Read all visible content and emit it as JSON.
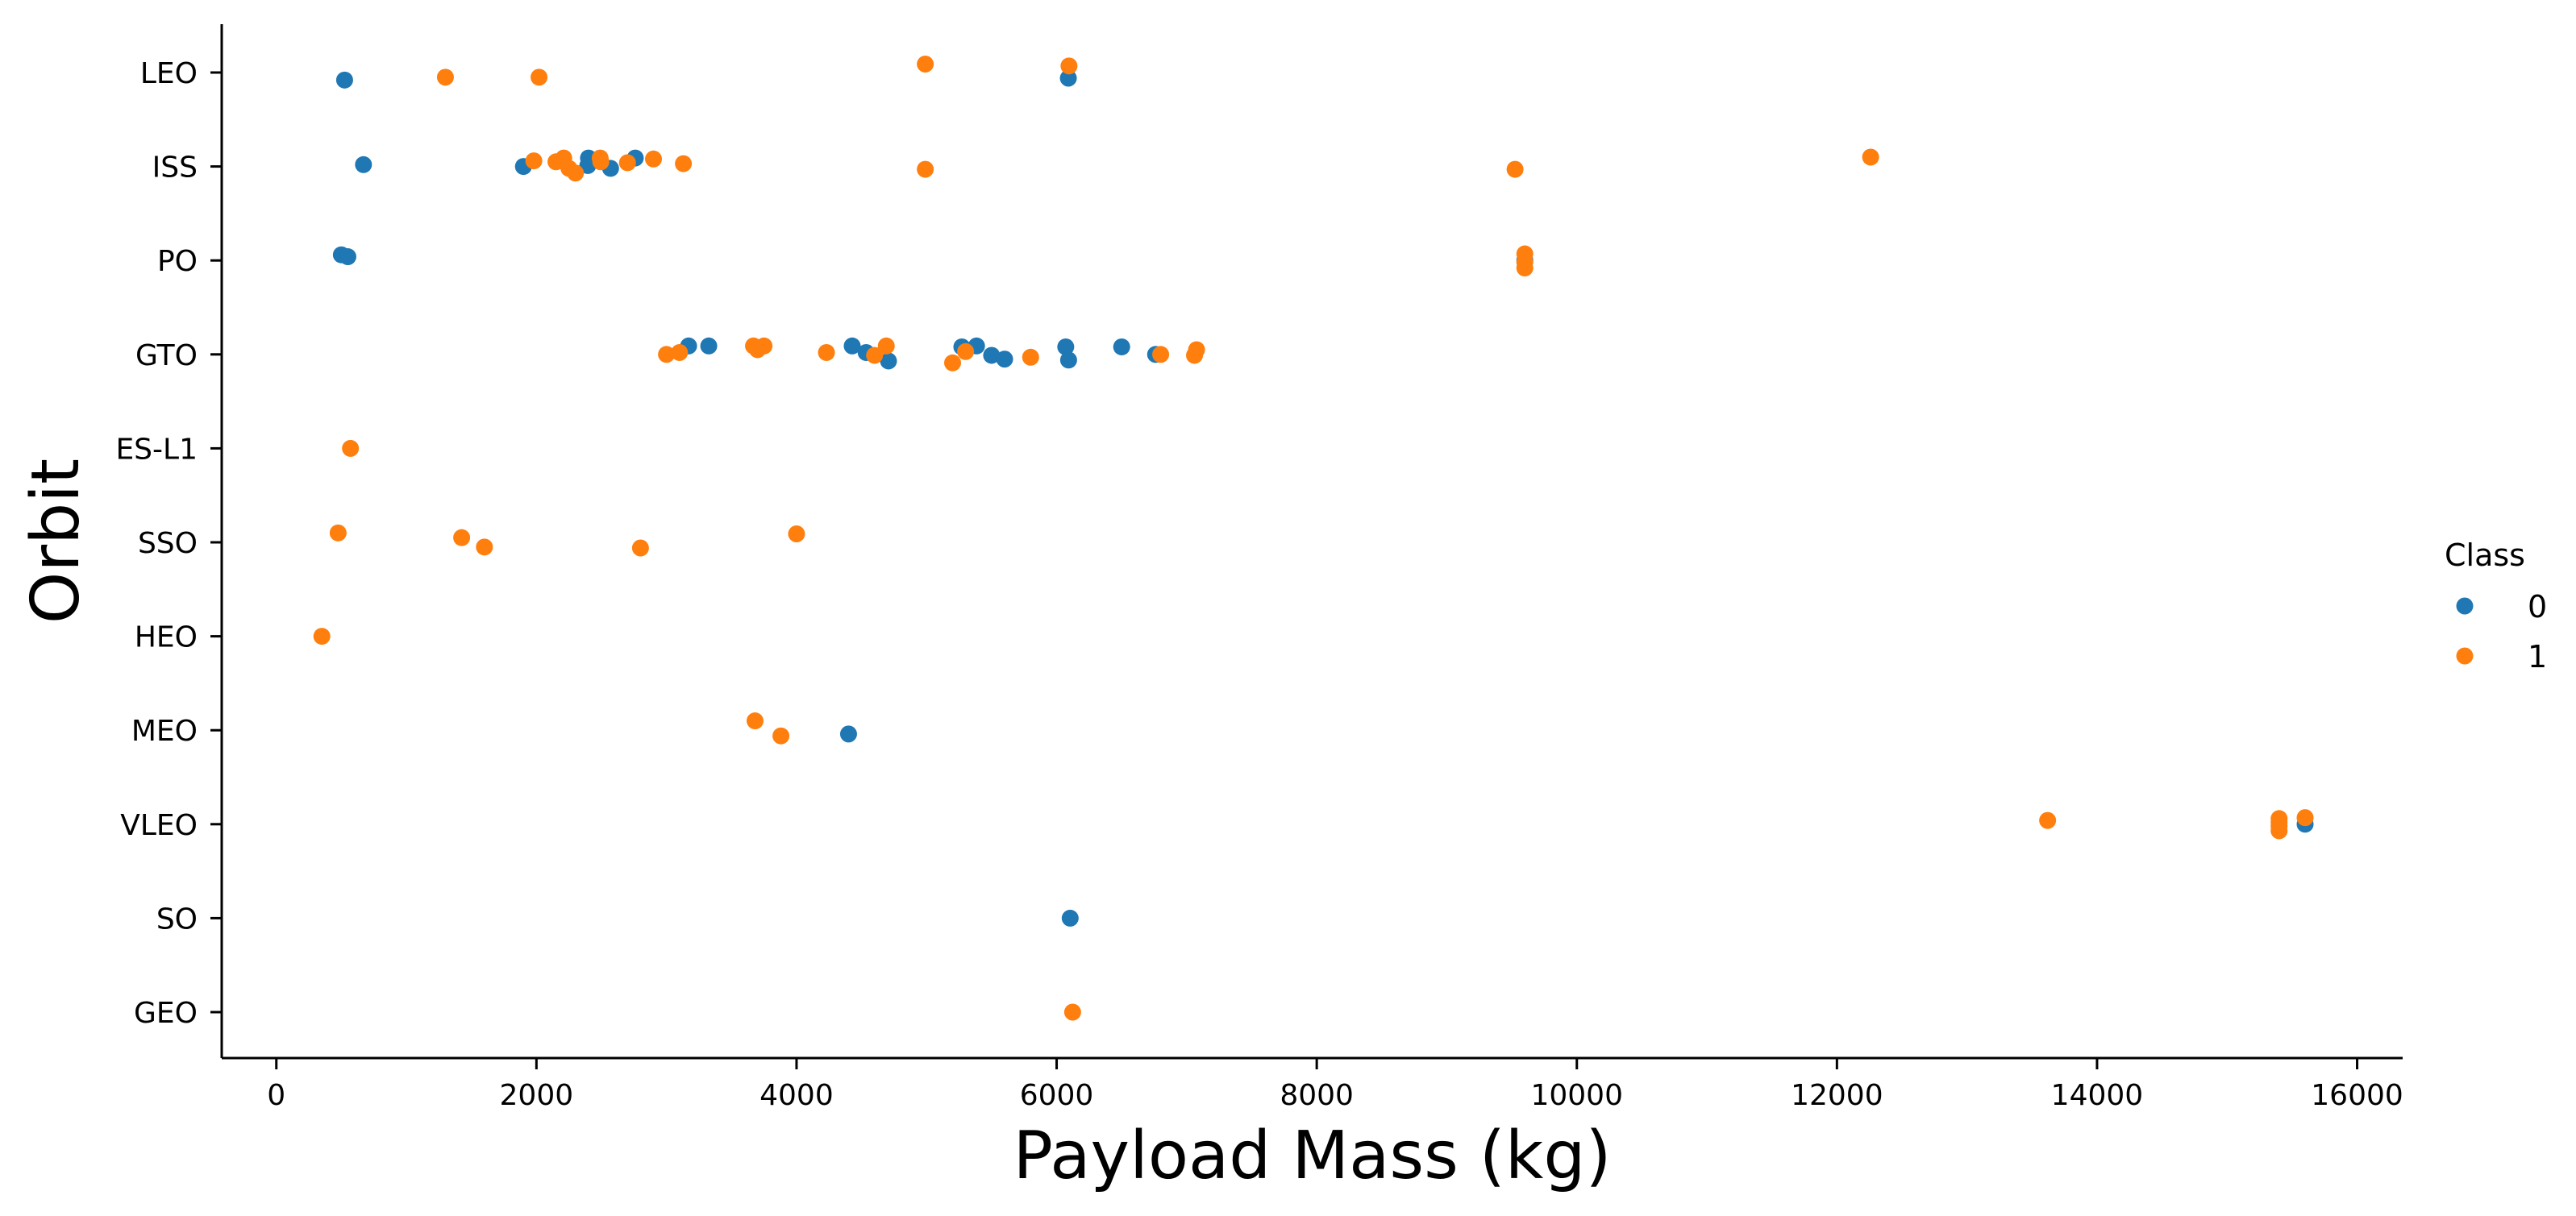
{
  "chart_data": {
    "type": "scatter",
    "xlabel": "Payload Mass (kg)",
    "ylabel": "Orbit",
    "xlim": [
      -420,
      16350
    ],
    "x_ticks": [
      0,
      2000,
      4000,
      6000,
      8000,
      10000,
      12000,
      14000,
      16000
    ],
    "x_tick_labels": [
      "0",
      "2000",
      "4000",
      "6000",
      "8000",
      "10000",
      "12000",
      "14000",
      "16000"
    ],
    "categories": [
      "LEO",
      "ISS",
      "PO",
      "GTO",
      "ES-L1",
      "SSO",
      "HEO",
      "MEO",
      "VLEO",
      "SO",
      "GEO"
    ],
    "grid": false,
    "legend_position": "right",
    "legend": {
      "title": "Class",
      "entries": [
        {
          "label": "0",
          "color": "#1f77b4"
        },
        {
          "label": "1",
          "color": "#ff7f0e"
        }
      ]
    },
    "series": [
      {
        "name": "0",
        "color": "#1f77b4",
        "points": [
          {
            "x": 525,
            "y": "LEO",
            "j": 0.08
          },
          {
            "x": 6090,
            "y": "LEO",
            "j": 0.06
          },
          {
            "x": 670,
            "y": "ISS",
            "j": -0.02
          },
          {
            "x": 1900,
            "y": "ISS",
            "j": 0.0
          },
          {
            "x": 2200,
            "y": "ISS",
            "j": -0.06
          },
          {
            "x": 2400,
            "y": "ISS",
            "j": -0.09
          },
          {
            "x": 2395,
            "y": "ISS",
            "j": -0.01
          },
          {
            "x": 2570,
            "y": "ISS",
            "j": 0.02
          },
          {
            "x": 2760,
            "y": "ISS",
            "j": -0.09
          },
          {
            "x": 500,
            "y": "PO",
            "j": -0.06
          },
          {
            "x": 550,
            "y": "PO",
            "j": -0.04
          },
          {
            "x": 9600,
            "y": "PO",
            "j": 0.0
          },
          {
            "x": 3170,
            "y": "GTO",
            "j": -0.09
          },
          {
            "x": 3325,
            "y": "GTO",
            "j": -0.09
          },
          {
            "x": 4428,
            "y": "GTO",
            "j": -0.09
          },
          {
            "x": 4535,
            "y": "GTO",
            "j": -0.02
          },
          {
            "x": 4707,
            "y": "GTO",
            "j": 0.07
          },
          {
            "x": 5271,
            "y": "GTO",
            "j": -0.08
          },
          {
            "x": 5384,
            "y": "GTO",
            "j": -0.09
          },
          {
            "x": 5500,
            "y": "GTO",
            "j": 0.01
          },
          {
            "x": 5600,
            "y": "GTO",
            "j": 0.05
          },
          {
            "x": 6070,
            "y": "GTO",
            "j": -0.08
          },
          {
            "x": 6092,
            "y": "GTO",
            "j": 0.06
          },
          {
            "x": 6500,
            "y": "GTO",
            "j": -0.08
          },
          {
            "x": 6761,
            "y": "GTO",
            "j": 0.0
          },
          {
            "x": 4400,
            "y": "MEO",
            "j": 0.04
          },
          {
            "x": 15600,
            "y": "VLEO",
            "j": 0.0
          },
          {
            "x": 6104,
            "y": "SO",
            "j": 0.0
          }
        ]
      },
      {
        "name": "1",
        "color": "#ff7f0e",
        "points": [
          {
            "x": 1300,
            "y": "LEO",
            "j": 0.05
          },
          {
            "x": 2020,
            "y": "LEO",
            "j": 0.05
          },
          {
            "x": 4990,
            "y": "LEO",
            "j": -0.09
          },
          {
            "x": 6095,
            "y": "LEO",
            "j": -0.07
          },
          {
            "x": 1980,
            "y": "ISS",
            "j": -0.06
          },
          {
            "x": 2150,
            "y": "ISS",
            "j": -0.05
          },
          {
            "x": 2210,
            "y": "ISS",
            "j": -0.09
          },
          {
            "x": 2250,
            "y": "ISS",
            "j": 0.02
          },
          {
            "x": 2300,
            "y": "ISS",
            "j": 0.07
          },
          {
            "x": 2490,
            "y": "ISS",
            "j": -0.09
          },
          {
            "x": 2495,
            "y": "ISS",
            "j": -0.05
          },
          {
            "x": 2700,
            "y": "ISS",
            "j": -0.04
          },
          {
            "x": 2900,
            "y": "ISS",
            "j": -0.08
          },
          {
            "x": 3130,
            "y": "ISS",
            "j": -0.03
          },
          {
            "x": 4990,
            "y": "ISS",
            "j": 0.03
          },
          {
            "x": 9525,
            "y": "ISS",
            "j": 0.03
          },
          {
            "x": 12259,
            "y": "ISS",
            "j": -0.1
          },
          {
            "x": 9600,
            "y": "PO",
            "j": -0.07
          },
          {
            "x": 9600,
            "y": "PO",
            "j": 0.02
          },
          {
            "x": 9600,
            "y": "PO",
            "j": 0.08
          },
          {
            "x": 3000,
            "y": "GTO",
            "j": 0.0
          },
          {
            "x": 3100,
            "y": "GTO",
            "j": -0.02
          },
          {
            "x": 3669,
            "y": "GTO",
            "j": -0.09
          },
          {
            "x": 3700,
            "y": "GTO",
            "j": -0.05
          },
          {
            "x": 3750,
            "y": "GTO",
            "j": -0.09
          },
          {
            "x": 4230,
            "y": "GTO",
            "j": -0.02
          },
          {
            "x": 4600,
            "y": "GTO",
            "j": 0.01
          },
          {
            "x": 4690,
            "y": "GTO",
            "j": -0.09
          },
          {
            "x": 5200,
            "y": "GTO",
            "j": 0.09
          },
          {
            "x": 5300,
            "y": "GTO",
            "j": -0.03
          },
          {
            "x": 5800,
            "y": "GTO",
            "j": 0.03
          },
          {
            "x": 6800,
            "y": "GTO",
            "j": 0.0
          },
          {
            "x": 7060,
            "y": "GTO",
            "j": 0.01
          },
          {
            "x": 7076,
            "y": "GTO",
            "j": -0.05
          },
          {
            "x": 570,
            "y": "ES-L1",
            "j": 0.0
          },
          {
            "x": 475,
            "y": "SSO",
            "j": -0.1
          },
          {
            "x": 1425,
            "y": "SSO",
            "j": -0.05
          },
          {
            "x": 1600,
            "y": "SSO",
            "j": 0.05
          },
          {
            "x": 2800,
            "y": "SSO",
            "j": 0.06
          },
          {
            "x": 4000,
            "y": "SSO",
            "j": -0.09
          },
          {
            "x": 350,
            "y": "HEO",
            "j": 0.0
          },
          {
            "x": 3681,
            "y": "MEO",
            "j": -0.1
          },
          {
            "x": 3880,
            "y": "MEO",
            "j": 0.06
          },
          {
            "x": 13620,
            "y": "VLEO",
            "j": -0.04
          },
          {
            "x": 15400,
            "y": "VLEO",
            "j": -0.06
          },
          {
            "x": 15400,
            "y": "VLEO",
            "j": -0.02
          },
          {
            "x": 15400,
            "y": "VLEO",
            "j": 0.02
          },
          {
            "x": 15400,
            "y": "VLEO",
            "j": 0.07
          },
          {
            "x": 15600,
            "y": "VLEO",
            "j": -0.07
          },
          {
            "x": 6123,
            "y": "GEO",
            "j": 0.0
          }
        ]
      }
    ]
  }
}
